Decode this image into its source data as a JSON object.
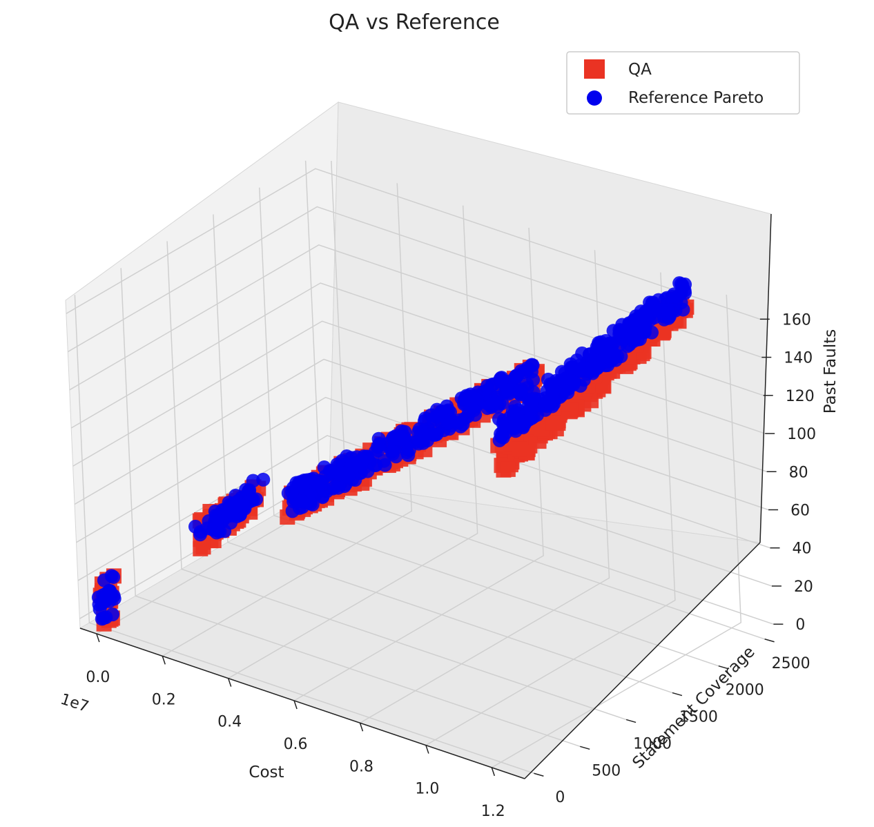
{
  "chart_data": {
    "type": "scatter",
    "title": "QA vs Reference",
    "xlabel": "Cost",
    "ylabel": "Statement Coverage",
    "zlabel": "Past Faults",
    "x_offset_text": "1e7",
    "x_ticks": [
      "0.0",
      "0.2",
      "0.4",
      "0.6",
      "0.8",
      "1.0",
      "1.2"
    ],
    "y_ticks": [
      "0",
      "500",
      "1000",
      "1500",
      "2000",
      "2500"
    ],
    "z_ticks": [
      "0",
      "20",
      "40",
      "60",
      "80",
      "100",
      "120",
      "140",
      "160"
    ],
    "legend_position": "top-right",
    "grid": true,
    "series": [
      {
        "name": "QA",
        "marker": "square",
        "color": "#ea3323",
        "clusters": [
          {
            "x": [
              0.0,
              0.0
            ],
            "y": [
              0,
              60
            ],
            "z": [
              0,
              20
            ]
          },
          {
            "x": [
              0.1,
              0.2
            ],
            "y": [
              700,
              1000
            ],
            "z": [
              30,
              50
            ]
          },
          {
            "x": [
              0.3,
              0.8
            ],
            "y": [
              1000,
              1900
            ],
            "z": [
              50,
              120
            ]
          },
          {
            "x": [
              0.75,
              1.1
            ],
            "y": [
              1700,
              2500
            ],
            "z": [
              80,
              160
            ]
          }
        ]
      },
      {
        "name": "Reference Pareto",
        "marker": "circle",
        "color": "#0000ee",
        "clusters": [
          {
            "x": [
              0.0,
              0.0
            ],
            "y": [
              0,
              50
            ],
            "z": [
              5,
              18
            ]
          },
          {
            "x": [
              0.1,
              0.2
            ],
            "y": [
              700,
              980
            ],
            "z": [
              30,
              50
            ]
          },
          {
            "x": [
              0.3,
              0.8
            ],
            "y": [
              1000,
              1900
            ],
            "z": [
              52,
              122
            ]
          },
          {
            "x": [
              0.75,
              1.1
            ],
            "y": [
              1700,
              2500
            ],
            "z": [
              95,
              165
            ]
          }
        ]
      }
    ]
  }
}
